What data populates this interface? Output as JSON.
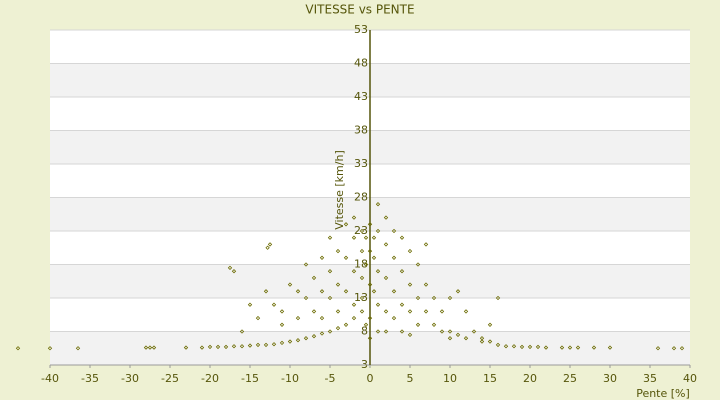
{
  "chart_data": {
    "type": "scatter",
    "title": "VITESSE vs PENTE",
    "x_label": "Pente [%]",
    "y_label": "Vitesse [km/h]",
    "color": "#6b6b00",
    "grid": true,
    "xlim": [
      -40,
      40
    ],
    "xticks": [
      -40,
      -35,
      -30,
      -25,
      -20,
      -15,
      -10,
      -5,
      0,
      5,
      10,
      15,
      20,
      25,
      30,
      35,
      40
    ],
    "ylim": [
      3,
      53
    ],
    "yticks": [
      3,
      8,
      13,
      18,
      23,
      28,
      33,
      38,
      43,
      48,
      53
    ],
    "x": [
      -44,
      -40,
      -36.5,
      -28,
      -27.5,
      -27,
      -23,
      -21,
      -20,
      -19,
      -18,
      -17,
      -16,
      -15,
      -14,
      -13,
      -12,
      -11,
      -10,
      -9,
      -8,
      -7,
      -6,
      -5,
      -4,
      -3,
      -2,
      -1,
      17,
      18,
      19,
      20,
      21,
      22,
      24,
      25,
      26,
      28,
      30,
      36,
      38,
      39,
      -12.5,
      -12.8,
      -17.5,
      -17,
      -13,
      -12,
      -11,
      -10,
      -9,
      -8,
      -8,
      -7,
      -7,
      -6,
      -6,
      -6,
      -5,
      -5,
      -5,
      -4,
      -4,
      -4,
      -3,
      -3,
      -3,
      -2,
      -2,
      -2,
      -2,
      -1,
      -1,
      -1,
      -1,
      -0.5,
      -0.5,
      -0.5,
      0,
      0,
      0,
      0,
      0,
      0.5,
      0.5,
      0.5,
      1,
      1,
      1,
      1,
      1,
      2,
      2,
      2,
      2,
      2,
      3,
      3,
      3,
      3,
      4,
      4,
      4,
      4,
      5,
      5,
      5,
      5,
      6,
      6,
      6,
      7,
      7,
      7,
      8,
      8,
      9,
      9,
      10,
      10,
      11,
      11,
      12,
      12,
      13,
      14,
      15,
      16,
      16,
      -15,
      -14,
      -16,
      -11,
      -9,
      10,
      14,
      15
    ],
    "values": [
      5.5,
      5.5,
      5.5,
      5.6,
      5.6,
      5.6,
      5.6,
      5.6,
      5.7,
      5.7,
      5.7,
      5.8,
      5.8,
      5.9,
      6,
      6,
      6.1,
      6.3,
      6.5,
      6.7,
      7,
      7.3,
      7.7,
      8,
      8.5,
      9,
      10,
      11,
      5.8,
      5.8,
      5.7,
      5.7,
      5.7,
      5.6,
      5.6,
      5.6,
      5.6,
      5.6,
      5.6,
      5.5,
      5.5,
      5.5,
      21,
      20.5,
      17.5,
      17,
      14,
      12,
      11,
      15,
      14,
      13,
      18,
      16,
      11,
      19,
      14,
      10,
      22,
      17,
      13,
      20,
      15,
      11,
      24,
      19,
      14,
      25,
      22,
      17,
      12,
      23,
      20,
      16,
      13,
      22,
      18,
      9,
      24,
      20,
      15,
      10,
      7,
      22,
      19,
      14,
      27,
      23,
      17,
      12,
      8,
      25,
      21,
      16,
      11,
      8,
      23,
      19,
      14,
      10,
      22,
      17,
      12,
      8,
      20,
      15,
      11,
      7.5,
      18,
      13,
      9,
      21,
      15,
      11,
      13,
      9,
      11,
      8,
      13,
      8,
      14,
      7.5,
      11,
      7,
      8,
      7,
      6.5,
      13,
      6,
      12,
      10,
      8,
      9,
      10,
      7,
      6.5,
      9
    ]
  }
}
